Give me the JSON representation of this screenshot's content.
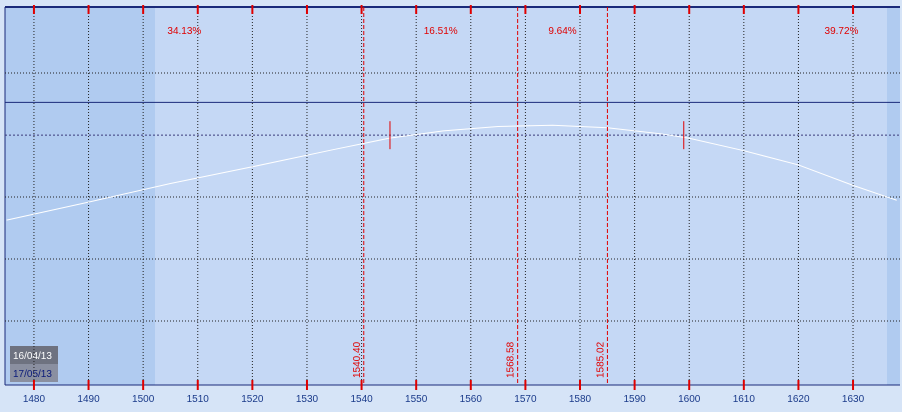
{
  "chart_data": {
    "type": "line",
    "xlim": [
      1474.7,
      1638.6
    ],
    "xticks": [
      1480,
      1490,
      1500,
      1510,
      1520,
      1530,
      1540,
      1550,
      1560,
      1570,
      1580,
      1590,
      1600,
      1610,
      1620,
      1630
    ],
    "ylim": [
      0,
      6.13
    ],
    "grid": true,
    "x": [
      1475,
      1490,
      1505,
      1520,
      1535,
      1545,
      1555,
      1565,
      1575,
      1585,
      1595,
      1600,
      1610,
      1620,
      1630,
      1638
    ],
    "series": [
      {
        "color": "#ffffff",
        "values": [
          2.66,
          2.95,
          3.25,
          3.52,
          3.8,
          3.98,
          4.1,
          4.17,
          4.19,
          4.15,
          4.05,
          3.98,
          3.78,
          3.55,
          3.22,
          2.98
        ]
      }
    ],
    "hlines": [
      4.56,
      4.03
    ],
    "markers": [
      1545.2,
      1599.0
    ],
    "strikes": [
      {
        "value": 1540.4,
        "label": "1540.40"
      },
      {
        "value": 1568.58,
        "label": "1568.58"
      },
      {
        "value": 1585.02,
        "label": "1585.02"
      }
    ],
    "regions": {
      "values": [
        34.13,
        16.51,
        9.64,
        39.72
      ],
      "value_labels": [
        "34.13%",
        "16.51%",
        "9.64%",
        "39.72%"
      ]
    },
    "dates": [
      "16/04/13",
      "17/05/13"
    ]
  }
}
